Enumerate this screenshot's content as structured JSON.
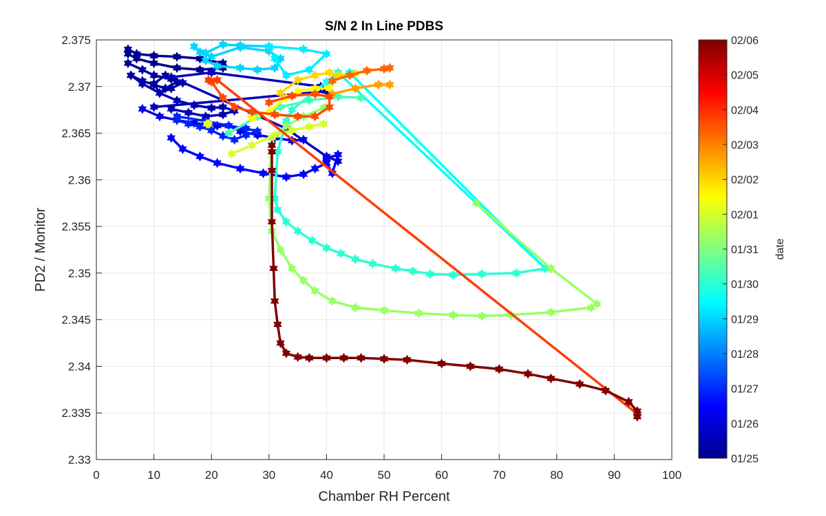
{
  "chart_data": {
    "type": "line",
    "title": "S/N 2 In Line PDBS",
    "xlabel": "Chamber RH Percent",
    "ylabel": "PD2 / Monitor",
    "xlim": [
      0,
      100
    ],
    "ylim": [
      2.33,
      2.375
    ],
    "x_ticks": [
      0,
      10,
      20,
      30,
      40,
      50,
      60,
      70,
      80,
      90,
      100
    ],
    "y_ticks": [
      2.33,
      2.335,
      2.34,
      2.345,
      2.35,
      2.355,
      2.36,
      2.365,
      2.37,
      2.375
    ],
    "x_tick_labels": [
      "0",
      "10",
      "20",
      "30",
      "40",
      "50",
      "60",
      "70",
      "80",
      "90",
      "100"
    ],
    "y_tick_labels": [
      "2.33",
      "2.335",
      "2.34",
      "2.345",
      "2.35",
      "2.355",
      "2.36",
      "2.365",
      "2.37",
      "2.375"
    ],
    "grid": true,
    "marker": "hexagram",
    "colorbar": {
      "label": "date",
      "colormap": "jet",
      "range": [
        0,
        12
      ],
      "tick_labels": [
        "01/25",
        "01/26",
        "01/27",
        "01/28",
        "01/29",
        "01/30",
        "01/31",
        "02/01",
        "02/02",
        "02/03",
        "02/04",
        "02/05",
        "02/06"
      ]
    },
    "colormap_stops": [
      "#00008f",
      "#0000ff",
      "#0080ff",
      "#00ffff",
      "#80ff80",
      "#ffff00",
      "#ff8000",
      "#ff0000",
      "#800000"
    ],
    "series": [
      {
        "date": 0.0,
        "x": [
          5.5,
          7,
          10,
          14,
          18,
          22,
          22,
          18,
          14,
          10,
          7,
          5.5
        ],
        "y": [
          2.374,
          2.3735,
          2.3733,
          2.3732,
          2.373,
          2.3725,
          2.372,
          2.3718,
          2.372,
          2.3725,
          2.373,
          2.3735
        ]
      },
      {
        "date": 0.2,
        "x": [
          5.5,
          8,
          10,
          13,
          15,
          13,
          11,
          10,
          12,
          14,
          12,
          10,
          8,
          6
        ],
        "y": [
          2.3725,
          2.3718,
          2.3712,
          2.3708,
          2.3704,
          2.3698,
          2.3693,
          2.3703,
          2.3712,
          2.3705,
          2.3698,
          2.3702,
          2.3706,
          2.3712
        ]
      },
      {
        "date": 0.4,
        "x": [
          6,
          8,
          11,
          14,
          17,
          20,
          22,
          24,
          22,
          19,
          16,
          13
        ],
        "y": [
          2.3712,
          2.3703,
          2.3693,
          2.3685,
          2.368,
          2.3677,
          2.3678,
          2.3674,
          2.367,
          2.3668,
          2.3672,
          2.3676
        ]
      },
      {
        "date": 0.6,
        "x": [
          10,
          40,
          39,
          20,
          13,
          33,
          40,
          42
        ],
        "y": [
          2.3678,
          2.3695,
          2.37,
          2.3715,
          2.371,
          2.3655,
          2.3625,
          2.362
        ]
      },
      {
        "date": 1.1,
        "x": [
          8,
          11,
          14,
          17,
          19,
          21,
          23,
          25,
          28,
          31,
          34,
          36
        ],
        "y": [
          2.3676,
          2.3668,
          2.3664,
          2.3661,
          2.3659,
          2.3658,
          2.3658,
          2.3652,
          2.3648,
          2.3645,
          2.3642,
          2.3643
        ]
      },
      {
        "date": 1.5,
        "x": [
          13,
          15,
          18,
          21,
          25,
          29,
          33,
          36,
          38,
          40,
          41,
          42,
          40
        ],
        "y": [
          2.3645,
          2.3633,
          2.3625,
          2.3618,
          2.3612,
          2.3607,
          2.3603,
          2.3606,
          2.3612,
          2.3618,
          2.3607,
          2.3627,
          2.3623
        ]
      },
      {
        "date": 1.9,
        "x": [
          14,
          19,
          23,
          26,
          28,
          26,
          24,
          22,
          20,
          18,
          16,
          14
        ],
        "y": [
          2.3668,
          2.3663,
          2.3658,
          2.3655,
          2.3652,
          2.3648,
          2.3643,
          2.3647,
          2.3653,
          2.3657,
          2.366,
          2.3664
        ]
      },
      {
        "date": 4.0,
        "x": [
          17,
          18,
          20,
          25,
          30,
          32,
          31,
          28,
          25,
          21,
          19,
          19,
          22,
          25,
          30
        ],
        "y": [
          2.3743,
          2.3737,
          2.3732,
          2.3742,
          2.3738,
          2.373,
          2.372,
          2.3718,
          2.372,
          2.3722,
          2.3728,
          2.3736,
          2.3745,
          2.3744,
          2.3743
        ]
      },
      {
        "date": 4.3,
        "x": [
          30,
          36,
          40,
          37,
          33,
          31,
          30
        ],
        "y": [
          2.3743,
          2.374,
          2.3735,
          2.3718,
          2.3712,
          2.373,
          2.3743
        ]
      },
      {
        "date": 4.6,
        "x": [
          40,
          44,
          78,
          42
        ],
        "y": [
          2.3705,
          2.3715,
          2.3505,
          2.3715
        ]
      },
      {
        "date": 5.0,
        "x": [
          42,
          38,
          34,
          33,
          31.5,
          31,
          31.5,
          33,
          35,
          37.5,
          40,
          42.5,
          45,
          48,
          52,
          55,
          58,
          62,
          67,
          73,
          78
        ],
        "y": [
          2.3715,
          2.3695,
          2.3675,
          2.3663,
          2.363,
          2.358,
          2.3568,
          2.3555,
          2.3545,
          2.3535,
          2.3527,
          2.3521,
          2.3515,
          2.351,
          2.3505,
          2.3502,
          2.3499,
          2.3498,
          2.3499,
          2.35,
          2.3505
        ]
      },
      {
        "date": 5.3,
        "x": [
          23,
          28,
          32,
          37,
          42,
          46
        ],
        "y": [
          2.365,
          2.3668,
          2.3678,
          2.3685,
          2.3689,
          2.3688
        ]
      },
      {
        "date": 6.3,
        "x": [
          39.5,
          36,
          33,
          30.5,
          30,
          30.5,
          32,
          34,
          36,
          38,
          41,
          45,
          50,
          56,
          62,
          67,
          72,
          79,
          86,
          87,
          79,
          66
        ],
        "y": [
          2.3677,
          2.3668,
          2.3658,
          2.3645,
          2.358,
          2.3545,
          2.3525,
          2.3505,
          2.3492,
          2.3481,
          2.347,
          2.3463,
          2.346,
          2.3457,
          2.3455,
          2.3454,
          2.3455,
          2.3458,
          2.3463,
          2.3467,
          2.3505,
          2.3575
        ]
      },
      {
        "date": 7.0,
        "x": [
          23.5,
          27,
          31,
          34,
          37,
          39.5
        ],
        "y": [
          2.3628,
          2.3637,
          2.3648,
          2.3653,
          2.3657,
          2.366
        ]
      },
      {
        "date": 7.5,
        "x": [
          27,
          30,
          33,
          35,
          38,
          40.5
        ],
        "y": [
          2.3666,
          2.3673,
          2.3688,
          2.3695,
          2.3698,
          2.3698
        ]
      },
      {
        "date": 8.0,
        "x": [
          32,
          35,
          38,
          40.5,
          42,
          45
        ],
        "y": [
          2.3693,
          2.3707,
          2.3712,
          2.3715,
          2.3712,
          2.3714
        ]
      },
      {
        "date": 8.6,
        "x": [
          41,
          45,
          49,
          51
        ],
        "y": [
          2.3692,
          2.3698,
          2.3702,
          2.3702
        ]
      },
      {
        "date": 9.3,
        "x": [
          41,
          44,
          47,
          50,
          51
        ],
        "y": [
          2.3706,
          2.3712,
          2.3717,
          2.3719,
          2.372
        ]
      },
      {
        "date": 9.6,
        "x": [
          20,
          22,
          24,
          27,
          31,
          35,
          38,
          40.5,
          40.5,
          38,
          34,
          30
        ],
        "y": [
          2.3705,
          2.3688,
          2.3678,
          2.3673,
          2.367,
          2.3668,
          2.3668,
          2.3678,
          2.3689,
          2.3692,
          2.369,
          2.3683
        ]
      },
      {
        "date": 9.8,
        "x": [
          19.5,
          21,
          94
        ],
        "y": [
          2.3707,
          2.3707,
          2.3349
        ]
      },
      {
        "date": 12.0,
        "x": [
          30.5,
          30.5,
          30.5,
          30.5,
          30.8,
          31,
          31.5,
          32,
          33,
          35,
          37,
          40,
          43,
          46,
          50,
          54,
          60,
          65,
          70,
          75,
          79,
          84,
          88.5,
          92.5,
          94,
          94
        ],
        "y": [
          2.3637,
          2.363,
          2.361,
          2.3555,
          2.3505,
          2.347,
          2.3445,
          2.3425,
          2.3414,
          2.341,
          2.3409,
          2.3409,
          2.3409,
          2.3409,
          2.3408,
          2.3407,
          2.3403,
          2.34,
          2.3397,
          2.3392,
          2.3387,
          2.3381,
          2.3374,
          2.3362,
          2.3352,
          2.3346
        ]
      },
      {
        "date": 7.2,
        "x": [
          19.5,
          19.2
        ],
        "y": [
          2.366,
          2.366
        ]
      }
    ]
  }
}
